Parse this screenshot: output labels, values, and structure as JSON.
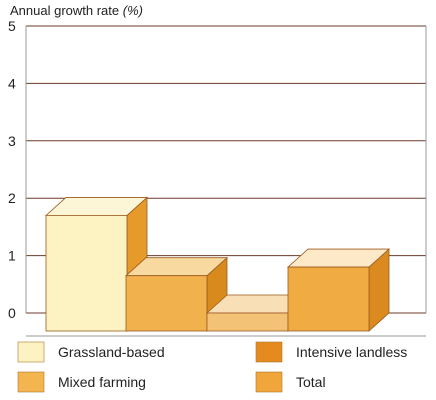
{
  "chart_data": {
    "type": "bar",
    "ylabel_main": "Annual growth rate ",
    "ylabel_unit": "(%)",
    "ylim": [
      0,
      5
    ],
    "yticks": [
      "0",
      "1",
      "2",
      "3",
      "4",
      "5"
    ],
    "grid": true,
    "legend_placement": "bottom",
    "categories": [
      "Grassland-based",
      "Mixed farming",
      "Intensive landless",
      "Total"
    ],
    "values": [
      1.7,
      0.65,
      0.0,
      0.8
    ],
    "colors": {
      "Grassland-based": {
        "front": "#fdf3c2",
        "top": "#fdf6d6",
        "side": "#e59a2a"
      },
      "Mixed farming": {
        "front": "#f1b14c",
        "top": "#f8d9a0",
        "side": "#d88a1d"
      },
      "Intensive landless": {
        "front": "#f3c277",
        "top": "#f8dfb5",
        "side": "#d8841d"
      },
      "Total": {
        "front": "#f0ac43",
        "top": "#fde8c8",
        "side": "#db8a20"
      }
    },
    "legend": [
      {
        "label": "Grassland-based",
        "color": "#fdf3c2"
      },
      {
        "label": "Intensive landless",
        "color": "#e48a1f"
      },
      {
        "label": "Mixed farming",
        "color": "#f2b54f"
      },
      {
        "label": "Total",
        "color": "#f0a63a"
      }
    ]
  }
}
